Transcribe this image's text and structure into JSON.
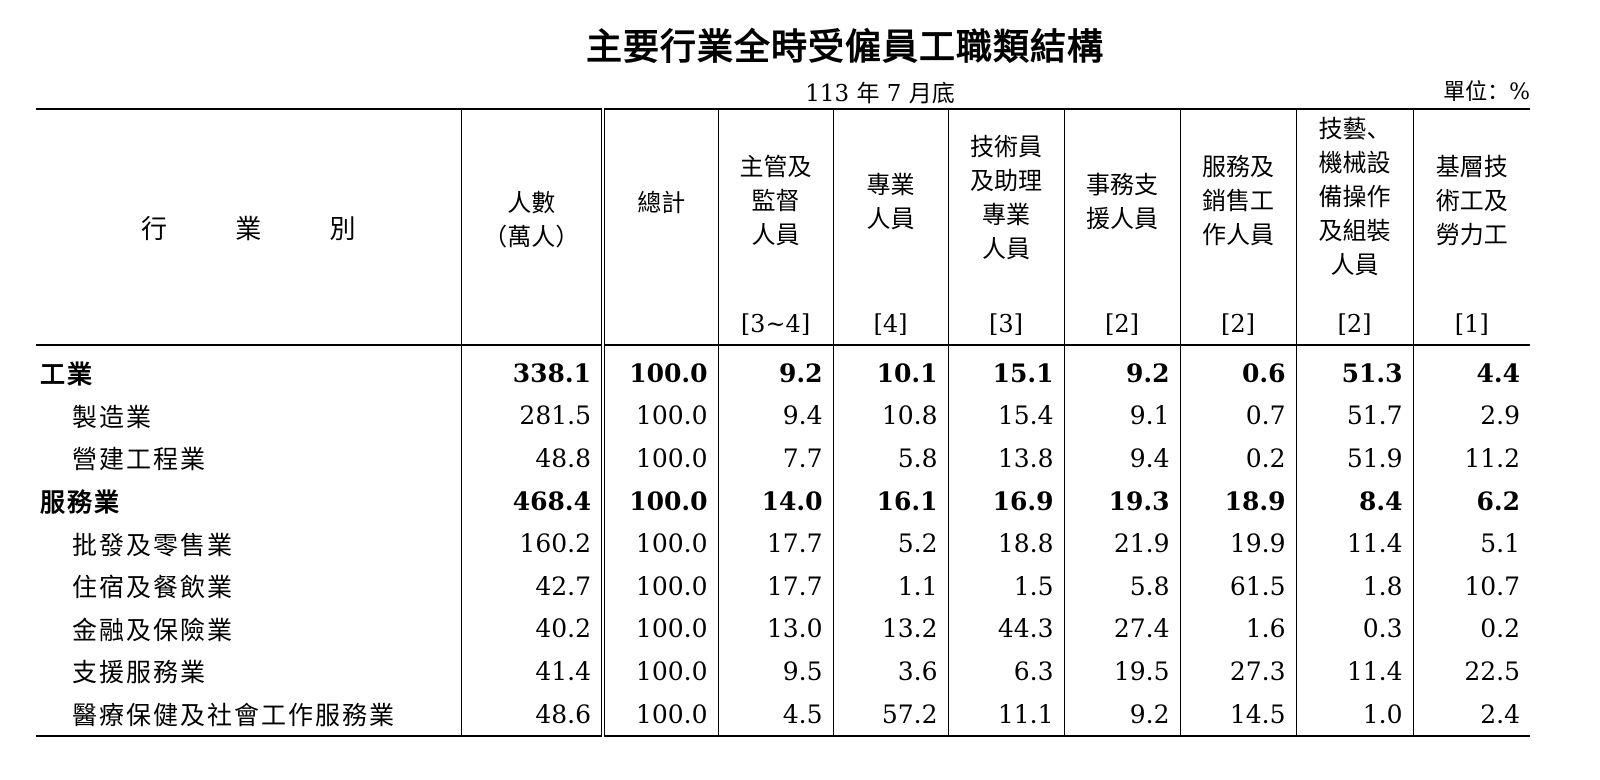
{
  "title": "主要行業全時受僱員工職類結構",
  "date": "113 年 7 月底",
  "unit": "單位：%",
  "table": {
    "industry_header": "行 業 別",
    "headers": [
      {
        "label": "人數\n（萬人）",
        "code": ""
      },
      {
        "label": "總計",
        "code": ""
      },
      {
        "label": "主管及\n監督\n人員",
        "code": "[3~4]"
      },
      {
        "label": "專業\n人員",
        "code": "[4]"
      },
      {
        "label": "技術員\n及助理\n專業\n人員",
        "code": "[3]"
      },
      {
        "label": "事務支\n援人員",
        "code": "[2]"
      },
      {
        "label": "服務及\n銷售工\n作人員",
        "code": "[2]"
      },
      {
        "label": "技藝、\n機械設\n備操作\n及組裝\n人員",
        "code": "[2]"
      },
      {
        "label": "基層技\n術工及\n勞力工",
        "code": "[1]"
      }
    ],
    "rows": [
      {
        "name": "工業",
        "level": 0,
        "values": [
          "338.1",
          "100.0",
          "9.2",
          "10.1",
          "15.1",
          "9.2",
          "0.6",
          "51.3",
          "4.4"
        ]
      },
      {
        "name": "製造業",
        "level": 1,
        "values": [
          "281.5",
          "100.0",
          "9.4",
          "10.8",
          "15.4",
          "9.1",
          "0.7",
          "51.7",
          "2.9"
        ]
      },
      {
        "name": "營建工程業",
        "level": 1,
        "values": [
          "48.8",
          "100.0",
          "7.7",
          "5.8",
          "13.8",
          "9.4",
          "0.2",
          "51.9",
          "11.2"
        ]
      },
      {
        "name": "服務業",
        "level": 0,
        "values": [
          "468.4",
          "100.0",
          "14.0",
          "16.1",
          "16.9",
          "19.3",
          "18.9",
          "8.4",
          "6.2"
        ]
      },
      {
        "name": "批發及零售業",
        "level": 1,
        "values": [
          "160.2",
          "100.0",
          "17.7",
          "5.2",
          "18.8",
          "21.9",
          "19.9",
          "11.4",
          "5.1"
        ]
      },
      {
        "name": "住宿及餐飲業",
        "level": 1,
        "values": [
          "42.7",
          "100.0",
          "17.7",
          "1.1",
          "1.5",
          "5.8",
          "61.5",
          "1.8",
          "10.7"
        ]
      },
      {
        "name": "金融及保險業",
        "level": 1,
        "values": [
          "40.2",
          "100.0",
          "13.0",
          "13.2",
          "44.3",
          "27.4",
          "1.6",
          "0.3",
          "0.2"
        ]
      },
      {
        "name": "支援服務業",
        "level": 1,
        "values": [
          "41.4",
          "100.0",
          "9.5",
          "3.6",
          "6.3",
          "19.5",
          "27.3",
          "11.4",
          "22.5"
        ]
      },
      {
        "name": "醫療保健及社會工作服務業",
        "level": 1,
        "values": [
          "48.6",
          "100.0",
          "4.5",
          "57.2",
          "11.1",
          "9.2",
          "14.5",
          "1.0",
          "2.4"
        ]
      }
    ]
  }
}
